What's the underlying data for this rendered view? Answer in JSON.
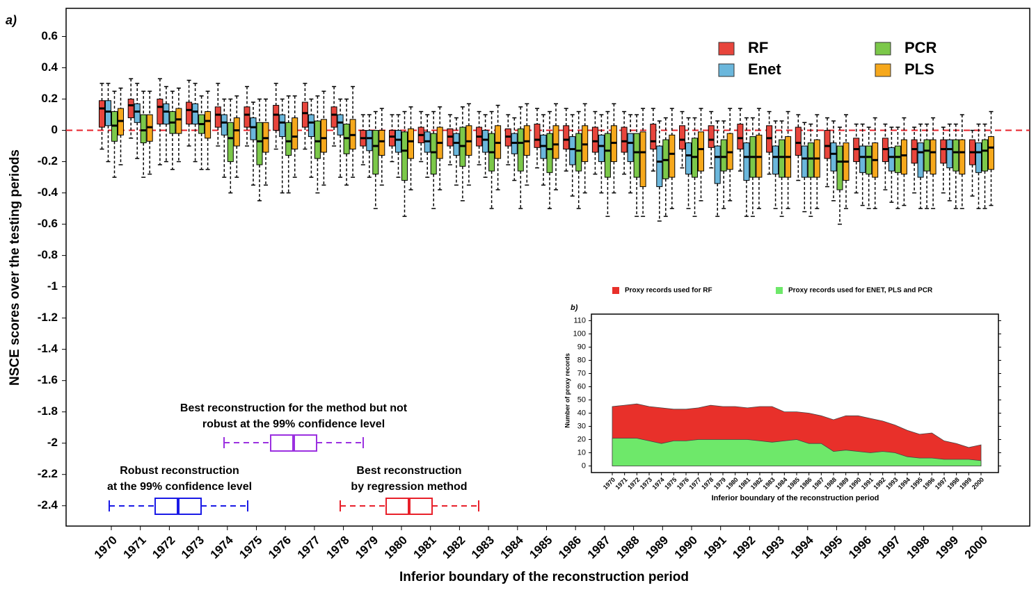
{
  "chart_data": [
    {
      "type": "box",
      "label": "a)",
      "y_label": "NSCE scores over the testing periods",
      "x_label": "Inferior boundary of the reconstruction period",
      "categories": [
        "1970",
        "1971",
        "1972",
        "1973",
        "1974",
        "1975",
        "1976",
        "1977",
        "1978",
        "1979",
        "1980",
        "1981",
        "1982",
        "1983",
        "1984",
        "1985",
        "1986",
        "1987",
        "1988",
        "1989",
        "1990",
        "1991",
        "1992",
        "1993",
        "1994",
        "1995",
        "1996",
        "1997",
        "1998",
        "1999",
        "2000"
      ],
      "ylim": [
        -2.53,
        0.78
      ],
      "yticks": [
        -2.4,
        -2.2,
        -2,
        -1.8,
        -1.6,
        -1.4,
        -1.2,
        -1,
        -0.8,
        -0.6,
        -0.4,
        -0.2,
        0,
        0.2,
        0.4,
        0.6
      ],
      "reference_line": {
        "value": 0,
        "color": "#e8202a"
      },
      "series": [
        {
          "name": "RF",
          "color": "#e8453c",
          "low": [
            -0.12,
            -0.05,
            -0.22,
            -0.1,
            -0.1,
            -0.1,
            -0.12,
            -0.12,
            -0.1,
            -0.22,
            -0.2,
            -0.2,
            -0.22,
            -0.22,
            -0.22,
            -0.24,
            -0.26,
            -0.28,
            -0.28,
            -0.26,
            -0.24,
            -0.24,
            -0.26,
            -0.28,
            -0.32,
            -0.36,
            -0.4,
            -0.38,
            -0.4,
            -0.4,
            -0.42
          ],
          "q1": [
            0.02,
            0.08,
            0.04,
            0.04,
            0.02,
            0.02,
            0.0,
            0.02,
            0.02,
            -0.1,
            -0.1,
            -0.08,
            -0.1,
            -0.1,
            -0.1,
            -0.11,
            -0.12,
            -0.14,
            -0.14,
            -0.12,
            -0.12,
            -0.11,
            -0.12,
            -0.14,
            -0.16,
            -0.18,
            -0.2,
            -0.2,
            -0.21,
            -0.21,
            -0.22
          ],
          "median": [
            0.14,
            0.16,
            0.15,
            0.13,
            0.1,
            0.1,
            0.1,
            0.11,
            0.1,
            -0.05,
            -0.04,
            -0.03,
            -0.04,
            -0.04,
            -0.04,
            -0.06,
            -0.06,
            -0.07,
            -0.07,
            -0.07,
            -0.06,
            -0.06,
            -0.05,
            -0.05,
            -0.08,
            -0.1,
            -0.12,
            -0.12,
            -0.12,
            -0.12,
            -0.14
          ],
          "q3": [
            0.19,
            0.2,
            0.2,
            0.18,
            0.15,
            0.15,
            0.16,
            0.18,
            0.15,
            0.0,
            0.0,
            0.02,
            0.01,
            0.02,
            0.01,
            0.04,
            0.03,
            0.02,
            0.02,
            0.04,
            0.03,
            0.03,
            0.04,
            0.03,
            0.02,
            0.0,
            -0.05,
            -0.05,
            -0.06,
            -0.06,
            -0.06
          ],
          "high": [
            0.3,
            0.33,
            0.33,
            0.32,
            0.3,
            0.28,
            0.3,
            0.3,
            0.28,
            0.1,
            0.1,
            0.12,
            0.1,
            0.12,
            0.1,
            0.14,
            0.14,
            0.12,
            0.12,
            0.14,
            0.12,
            0.12,
            0.14,
            0.12,
            0.1,
            0.08,
            0.04,
            0.04,
            0.02,
            0.02,
            0.0
          ]
        },
        {
          "name": "Enet",
          "color": "#6bb7dc",
          "low": [
            -0.2,
            -0.18,
            -0.2,
            -0.2,
            -0.3,
            -0.35,
            -0.4,
            -0.3,
            -0.3,
            -0.3,
            -0.3,
            -0.3,
            -0.35,
            -0.3,
            -0.32,
            -0.35,
            -0.42,
            -0.4,
            -0.4,
            -0.58,
            -0.5,
            -0.55,
            -0.55,
            -0.5,
            -0.52,
            -0.45,
            -0.48,
            -0.46,
            -0.5,
            -0.45,
            -0.5
          ],
          "q1": [
            0.03,
            0.05,
            0.04,
            0.04,
            -0.03,
            -0.06,
            -0.04,
            -0.04,
            -0.03,
            -0.13,
            -0.14,
            -0.14,
            -0.16,
            -0.14,
            -0.15,
            -0.18,
            -0.22,
            -0.2,
            -0.2,
            -0.36,
            -0.28,
            -0.34,
            -0.32,
            -0.28,
            -0.3,
            -0.26,
            -0.27,
            -0.26,
            -0.3,
            -0.24,
            -0.27
          ],
          "median": [
            0.12,
            0.12,
            0.12,
            0.12,
            0.05,
            0.02,
            0.05,
            0.05,
            0.05,
            -0.05,
            -0.06,
            -0.07,
            -0.08,
            -0.06,
            -0.08,
            -0.1,
            -0.12,
            -0.1,
            -0.08,
            -0.2,
            -0.16,
            -0.17,
            -0.17,
            -0.17,
            -0.18,
            -0.15,
            -0.17,
            -0.17,
            -0.14,
            -0.12,
            -0.14
          ],
          "q3": [
            0.19,
            0.17,
            0.17,
            0.17,
            0.1,
            0.08,
            0.1,
            0.1,
            0.1,
            0.0,
            0.0,
            -0.01,
            -0.02,
            0.0,
            -0.02,
            -0.03,
            -0.04,
            -0.03,
            -0.02,
            -0.1,
            -0.08,
            -0.1,
            -0.08,
            -0.1,
            -0.1,
            -0.08,
            -0.1,
            -0.11,
            -0.08,
            -0.06,
            -0.08
          ],
          "high": [
            0.3,
            0.3,
            0.28,
            0.3,
            0.2,
            0.18,
            0.2,
            0.2,
            0.2,
            0.1,
            0.1,
            0.1,
            0.08,
            0.1,
            0.08,
            0.1,
            0.1,
            0.1,
            0.1,
            0.06,
            0.08,
            0.06,
            0.08,
            0.06,
            0.05,
            0.06,
            0.04,
            0.02,
            0.04,
            0.04,
            0.04
          ]
        },
        {
          "name": "PCR",
          "color": "#7cc84a",
          "low": [
            -0.3,
            -0.3,
            -0.25,
            -0.25,
            -0.4,
            -0.45,
            -0.4,
            -0.4,
            -0.35,
            -0.5,
            -0.55,
            -0.5,
            -0.45,
            -0.5,
            -0.5,
            -0.5,
            -0.5,
            -0.55,
            -0.55,
            -0.55,
            -0.55,
            -0.5,
            -0.55,
            -0.55,
            -0.55,
            -0.6,
            -0.5,
            -0.5,
            -0.5,
            -0.5,
            -0.5
          ],
          "q1": [
            -0.07,
            -0.08,
            -0.02,
            -0.02,
            -0.2,
            -0.22,
            -0.16,
            -0.18,
            -0.15,
            -0.28,
            -0.32,
            -0.28,
            -0.23,
            -0.26,
            -0.26,
            -0.27,
            -0.26,
            -0.3,
            -0.3,
            -0.31,
            -0.3,
            -0.26,
            -0.3,
            -0.3,
            -0.3,
            -0.38,
            -0.28,
            -0.27,
            -0.26,
            -0.26,
            -0.26
          ],
          "median": [
            0.03,
            0.0,
            0.05,
            0.04,
            -0.05,
            -0.07,
            -0.07,
            -0.07,
            -0.05,
            -0.1,
            -0.13,
            -0.14,
            -0.1,
            -0.14,
            -0.08,
            -0.12,
            -0.13,
            -0.13,
            -0.14,
            -0.19,
            -0.17,
            -0.17,
            -0.17,
            -0.17,
            -0.18,
            -0.2,
            -0.17,
            -0.17,
            -0.13,
            -0.14,
            -0.13
          ],
          "q3": [
            0.12,
            0.1,
            0.12,
            0.1,
            0.05,
            0.05,
            0.05,
            0.06,
            0.04,
            0.0,
            -0.01,
            -0.02,
            0.02,
            -0.02,
            0.01,
            -0.02,
            -0.02,
            -0.02,
            -0.02,
            -0.06,
            -0.05,
            -0.06,
            -0.04,
            -0.06,
            -0.08,
            -0.1,
            -0.1,
            -0.1,
            -0.06,
            -0.06,
            -0.06
          ],
          "high": [
            0.25,
            0.25,
            0.25,
            0.22,
            0.2,
            0.2,
            0.22,
            0.22,
            0.2,
            0.12,
            0.12,
            0.12,
            0.15,
            0.12,
            0.15,
            0.12,
            0.12,
            0.12,
            0.1,
            0.08,
            0.08,
            0.06,
            0.08,
            0.06,
            0.04,
            0.02,
            0.02,
            0.02,
            0.04,
            0.04,
            0.04
          ]
        },
        {
          "name": "PLS",
          "color": "#f6a81c",
          "low": [
            -0.22,
            -0.28,
            -0.2,
            -0.25,
            -0.3,
            -0.35,
            -0.3,
            -0.35,
            -0.3,
            -0.35,
            -0.38,
            -0.38,
            -0.35,
            -0.38,
            -0.35,
            -0.38,
            -0.4,
            -0.4,
            -0.55,
            -0.5,
            -0.45,
            -0.45,
            -0.5,
            -0.5,
            -0.5,
            -0.5,
            -0.5,
            -0.48,
            -0.5,
            -0.5,
            -0.48
          ],
          "q1": [
            -0.03,
            -0.07,
            -0.02,
            -0.05,
            -0.1,
            -0.14,
            -0.12,
            -0.14,
            -0.12,
            -0.16,
            -0.18,
            -0.18,
            -0.16,
            -0.18,
            -0.16,
            -0.18,
            -0.2,
            -0.2,
            -0.36,
            -0.3,
            -0.26,
            -0.25,
            -0.3,
            -0.3,
            -0.3,
            -0.32,
            -0.3,
            -0.28,
            -0.28,
            -0.28,
            -0.25
          ],
          "median": [
            0.06,
            0.02,
            0.07,
            0.06,
            0.0,
            -0.05,
            -0.04,
            -0.05,
            -0.03,
            -0.07,
            -0.07,
            -0.08,
            -0.07,
            -0.08,
            -0.07,
            -0.09,
            -0.09,
            -0.08,
            -0.14,
            -0.15,
            -0.12,
            -0.14,
            -0.17,
            -0.17,
            -0.18,
            -0.2,
            -0.19,
            -0.16,
            -0.14,
            -0.14,
            -0.11
          ],
          "q3": [
            0.14,
            0.1,
            0.14,
            0.12,
            0.08,
            0.05,
            0.08,
            0.07,
            0.07,
            0.0,
            0.01,
            0.02,
            0.03,
            0.03,
            0.03,
            0.03,
            0.03,
            0.03,
            -0.01,
            -0.03,
            -0.01,
            -0.02,
            -0.03,
            -0.04,
            -0.06,
            -0.08,
            -0.08,
            -0.06,
            -0.06,
            -0.06,
            -0.04
          ],
          "high": [
            0.27,
            0.25,
            0.27,
            0.25,
            0.22,
            0.2,
            0.22,
            0.25,
            0.28,
            0.14,
            0.15,
            0.15,
            0.17,
            0.16,
            0.17,
            0.17,
            0.17,
            0.17,
            0.14,
            0.14,
            0.14,
            0.14,
            0.14,
            0.12,
            0.1,
            0.1,
            0.08,
            0.08,
            0.08,
            0.1,
            0.12
          ]
        }
      ],
      "annotations": [
        {
          "text": [
            "Best reconstruction for the method but not",
            "robust at the 99% confidence level"
          ],
          "color": "#9b30e0"
        },
        {
          "text": [
            "Robust reconstruction",
            "at the 99% confidence level"
          ],
          "color": "#1a1ae6"
        },
        {
          "text": [
            "Best reconstruction",
            "by regression method"
          ],
          "color": "#e8202a"
        }
      ]
    },
    {
      "type": "area",
      "label": "b)",
      "y_label": "Number of proxy records",
      "x_label": "Inferior boundary of the reconstruction period",
      "categories": [
        "1970",
        "1971",
        "1972",
        "1973",
        "1974",
        "1975",
        "1976",
        "1977",
        "1978",
        "1979",
        "1980",
        "1981",
        "1982",
        "1983",
        "1984",
        "1985",
        "1986",
        "1987",
        "1988",
        "1989",
        "1990",
        "1991",
        "1992",
        "1993",
        "1994",
        "1995",
        "1996",
        "1997",
        "1998",
        "1999",
        "2000"
      ],
      "ylim": [
        -5,
        115
      ],
      "yticks": [
        0,
        10,
        20,
        30,
        40,
        50,
        60,
        70,
        80,
        90,
        100,
        110
      ],
      "series": [
        {
          "name": "Proxy records used for RF",
          "color": "#e8302a",
          "values": [
            45,
            46,
            47,
            45,
            44,
            43,
            43,
            44,
            46,
            45,
            45,
            44,
            45,
            45,
            41,
            41,
            40,
            38,
            35,
            38,
            38,
            36,
            34,
            31,
            27,
            24,
            25,
            19,
            17,
            14,
            16
          ]
        },
        {
          "name": "Proxy records used for ENET, PLS and PCR",
          "color": "#6ee86a",
          "values": [
            21,
            21,
            21,
            19,
            17,
            19,
            19,
            20,
            20,
            20,
            20,
            20,
            19,
            18,
            19,
            20,
            17,
            17,
            11,
            12,
            11,
            10,
            11,
            10,
            7,
            6,
            6,
            5,
            5,
            5,
            4
          ]
        }
      ]
    }
  ]
}
